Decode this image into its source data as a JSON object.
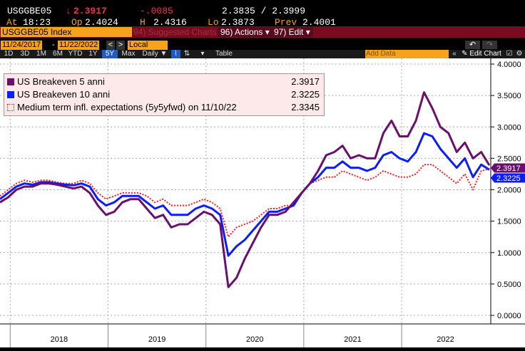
{
  "quote": {
    "ticker": "USGGBE05",
    "last": "2.3917",
    "change": "-.0085",
    "bid_ask": "2.3835 / 2.3999",
    "at_label": "At",
    "time": "18:23",
    "open_label": "Op",
    "open": "2.4024",
    "high_label": "H",
    "high": "2.4316",
    "low_label": "Lo",
    "low": "2.3873",
    "prev_label": "Prev",
    "prev": "2.4001"
  },
  "toolbar": {
    "index": "USGGBE05 Index",
    "suggested": "94) Suggested Charts",
    "actions": "96) Actions ▾",
    "edit": "97) Edit ▾",
    "start_date": "11/24/2017",
    "end_date": "11/22/2022",
    "currency": "Local CCY",
    "add_data": "Add Data",
    "edit_chart": "Edit Chart",
    "ranges": [
      "1D",
      "3D",
      "1M",
      "6M",
      "YTD",
      "1Y",
      "5Y",
      "Max"
    ],
    "selected_range": "5Y",
    "frequency": "Daily ▼",
    "table": "Table"
  },
  "colors": {
    "purple": "#6a0f6e",
    "blue": "#0a1ef5",
    "red": "#ff1a1a",
    "orange": "#f7a21b"
  },
  "chart_data": {
    "type": "line",
    "x_start": "2017-11",
    "x_end": "2022-11",
    "xtick_labels": [
      "2018",
      "2019",
      "2020",
      "2021",
      "2022"
    ],
    "ylim": [
      -0.1,
      4.1
    ],
    "yticks": [
      "0.0000",
      "0.5000",
      "1.0000",
      "1.5000",
      "2.0000",
      "2.5000",
      "3.0000",
      "3.5000",
      "4.0000"
    ],
    "grid": true,
    "legend_position": "top-left",
    "series": [
      {
        "name": "US Breakeven 5 anni",
        "last": "2.3917",
        "style": "solid",
        "color": "#6a0f6e",
        "values": [
          1.8,
          1.88,
          2.0,
          2.05,
          2.05,
          2.1,
          2.1,
          2.08,
          2.05,
          2.02,
          2.05,
          1.95,
          1.75,
          1.6,
          1.65,
          1.8,
          1.85,
          1.85,
          1.7,
          1.55,
          1.6,
          1.4,
          1.45,
          1.45,
          1.55,
          1.65,
          1.6,
          1.45,
          0.45,
          0.6,
          0.9,
          1.15,
          1.4,
          1.6,
          1.6,
          1.65,
          1.8,
          1.95,
          2.1,
          2.3,
          2.55,
          2.6,
          2.7,
          2.5,
          2.55,
          2.5,
          2.5,
          2.9,
          3.1,
          2.85,
          2.85,
          3.1,
          3.55,
          3.3,
          3.0,
          2.9,
          2.6,
          2.75,
          2.5,
          2.6,
          2.39
        ]
      },
      {
        "name": "US Breakeven 10 anni",
        "last": "2.3225",
        "style": "solid",
        "color": "#0a1ef5",
        "values": [
          1.85,
          1.95,
          2.05,
          2.1,
          2.08,
          2.12,
          2.12,
          2.1,
          2.08,
          2.07,
          2.1,
          2.05,
          1.85,
          1.75,
          1.8,
          1.9,
          1.9,
          1.9,
          1.8,
          1.7,
          1.75,
          1.6,
          1.6,
          1.6,
          1.7,
          1.75,
          1.7,
          1.6,
          0.95,
          1.1,
          1.2,
          1.35,
          1.5,
          1.65,
          1.65,
          1.7,
          1.75,
          1.95,
          2.1,
          2.2,
          2.35,
          2.35,
          2.45,
          2.35,
          2.35,
          2.3,
          2.35,
          2.55,
          2.6,
          2.5,
          2.45,
          2.6,
          2.9,
          2.85,
          2.65,
          2.5,
          2.35,
          2.5,
          2.2,
          2.4,
          2.32
        ]
      },
      {
        "name": "Medium term infl. expectations (5y5yfwd) on 11/10/22",
        "last": "2.3345",
        "style": "dotted",
        "color": "#ff1a1a",
        "values": [
          1.9,
          2.0,
          2.1,
          2.15,
          2.12,
          2.15,
          2.15,
          2.12,
          2.1,
          2.1,
          2.15,
          2.1,
          1.95,
          1.85,
          1.9,
          1.95,
          1.95,
          1.95,
          1.9,
          1.8,
          1.85,
          1.75,
          1.75,
          1.75,
          1.8,
          1.85,
          1.8,
          1.7,
          1.25,
          1.4,
          1.45,
          1.5,
          1.6,
          1.7,
          1.7,
          1.75,
          1.75,
          1.95,
          2.1,
          2.15,
          2.2,
          2.2,
          2.3,
          2.25,
          2.2,
          2.15,
          2.2,
          2.3,
          2.25,
          2.2,
          2.2,
          2.25,
          2.4,
          2.4,
          2.3,
          2.2,
          2.1,
          2.25,
          2.0,
          2.3,
          2.33
        ]
      }
    ]
  }
}
